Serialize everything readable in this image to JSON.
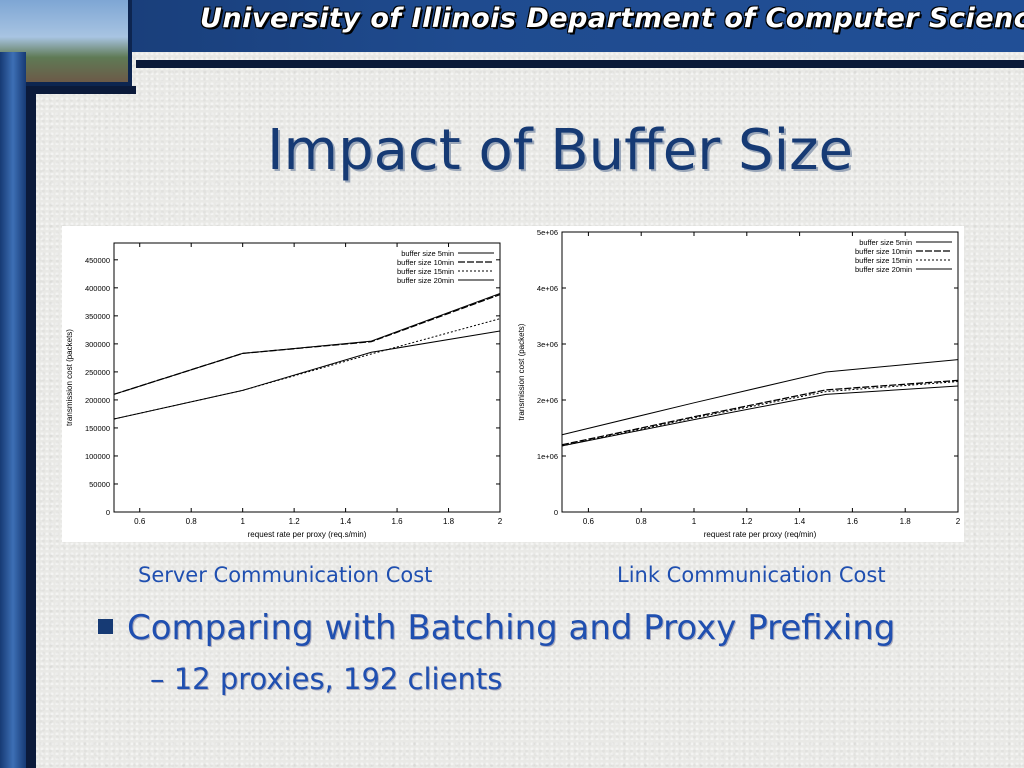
{
  "header": {
    "banner_title": "University of Illinois Department of Computer Science"
  },
  "slide": {
    "title": "Impact of Buffer Size",
    "captions": [
      "Server Communication Cost",
      "Link Communication Cost"
    ],
    "bullet": "Comparing with Batching and Proxy Prefixing",
    "sub_bullet": "– 12 proxies, 192 clients"
  },
  "chart_data": [
    {
      "type": "line",
      "xlabel": "request rate per proxy (req.s/min)",
      "ylabel": "transmission cost (packets)",
      "xlim": [
        0.5,
        2
      ],
      "ylim": [
        0,
        480000
      ],
      "xticks": [
        "0.6",
        "0.8",
        "1",
        "1.2",
        "1.4",
        "1.6",
        "1.8",
        "2"
      ],
      "yticks": [
        "0",
        "50000",
        "100000",
        "150000",
        "200000",
        "250000",
        "300000",
        "350000",
        "400000",
        "450000"
      ],
      "legend_position": "top-right",
      "series": [
        {
          "name": "buffer size 5min",
          "x": [
            0.5,
            1,
            1.5,
            2
          ],
          "y": [
            210000,
            283000,
            305000,
            390000
          ]
        },
        {
          "name": "buffer size 10min",
          "x": [
            0.5,
            1,
            1.5,
            2
          ],
          "y": [
            210000,
            283000,
            304000,
            388000
          ]
        },
        {
          "name": "buffer size 15min",
          "x": [
            0.5,
            1,
            1.5,
            2
          ],
          "y": [
            166000,
            217000,
            282000,
            345000
          ]
        },
        {
          "name": "buffer size 20min",
          "x": [
            0.5,
            1,
            1.5,
            2
          ],
          "y": [
            166000,
            217000,
            285000,
            323000
          ]
        }
      ]
    },
    {
      "type": "line",
      "xlabel": "request rate per proxy (req/min)",
      "ylabel": "transmission cost (packets)",
      "xlim": [
        0.5,
        2
      ],
      "ylim": [
        0,
        5000000
      ],
      "xticks": [
        "0.6",
        "0.8",
        "1",
        "1.2",
        "1.4",
        "1.6",
        "1.8",
        "2"
      ],
      "yticks": [
        "0",
        "1e+06",
        "2e+06",
        "3e+06",
        "4e+06",
        "5e+06"
      ],
      "legend_position": "top-right",
      "series": [
        {
          "name": "buffer size 5min",
          "x": [
            0.5,
            1,
            1.5,
            2
          ],
          "y": [
            1380000,
            1950000,
            2500000,
            2720000
          ]
        },
        {
          "name": "buffer size 10min",
          "x": [
            0.5,
            1,
            1.5,
            2
          ],
          "y": [
            1200000,
            1700000,
            2180000,
            2350000
          ]
        },
        {
          "name": "buffer size 15min",
          "x": [
            0.5,
            1,
            1.5,
            2
          ],
          "y": [
            1180000,
            1680000,
            2150000,
            2330000
          ]
        },
        {
          "name": "buffer size 20min",
          "x": [
            0.5,
            1,
            1.5,
            2
          ],
          "y": [
            1180000,
            1650000,
            2100000,
            2250000
          ]
        }
      ]
    }
  ]
}
